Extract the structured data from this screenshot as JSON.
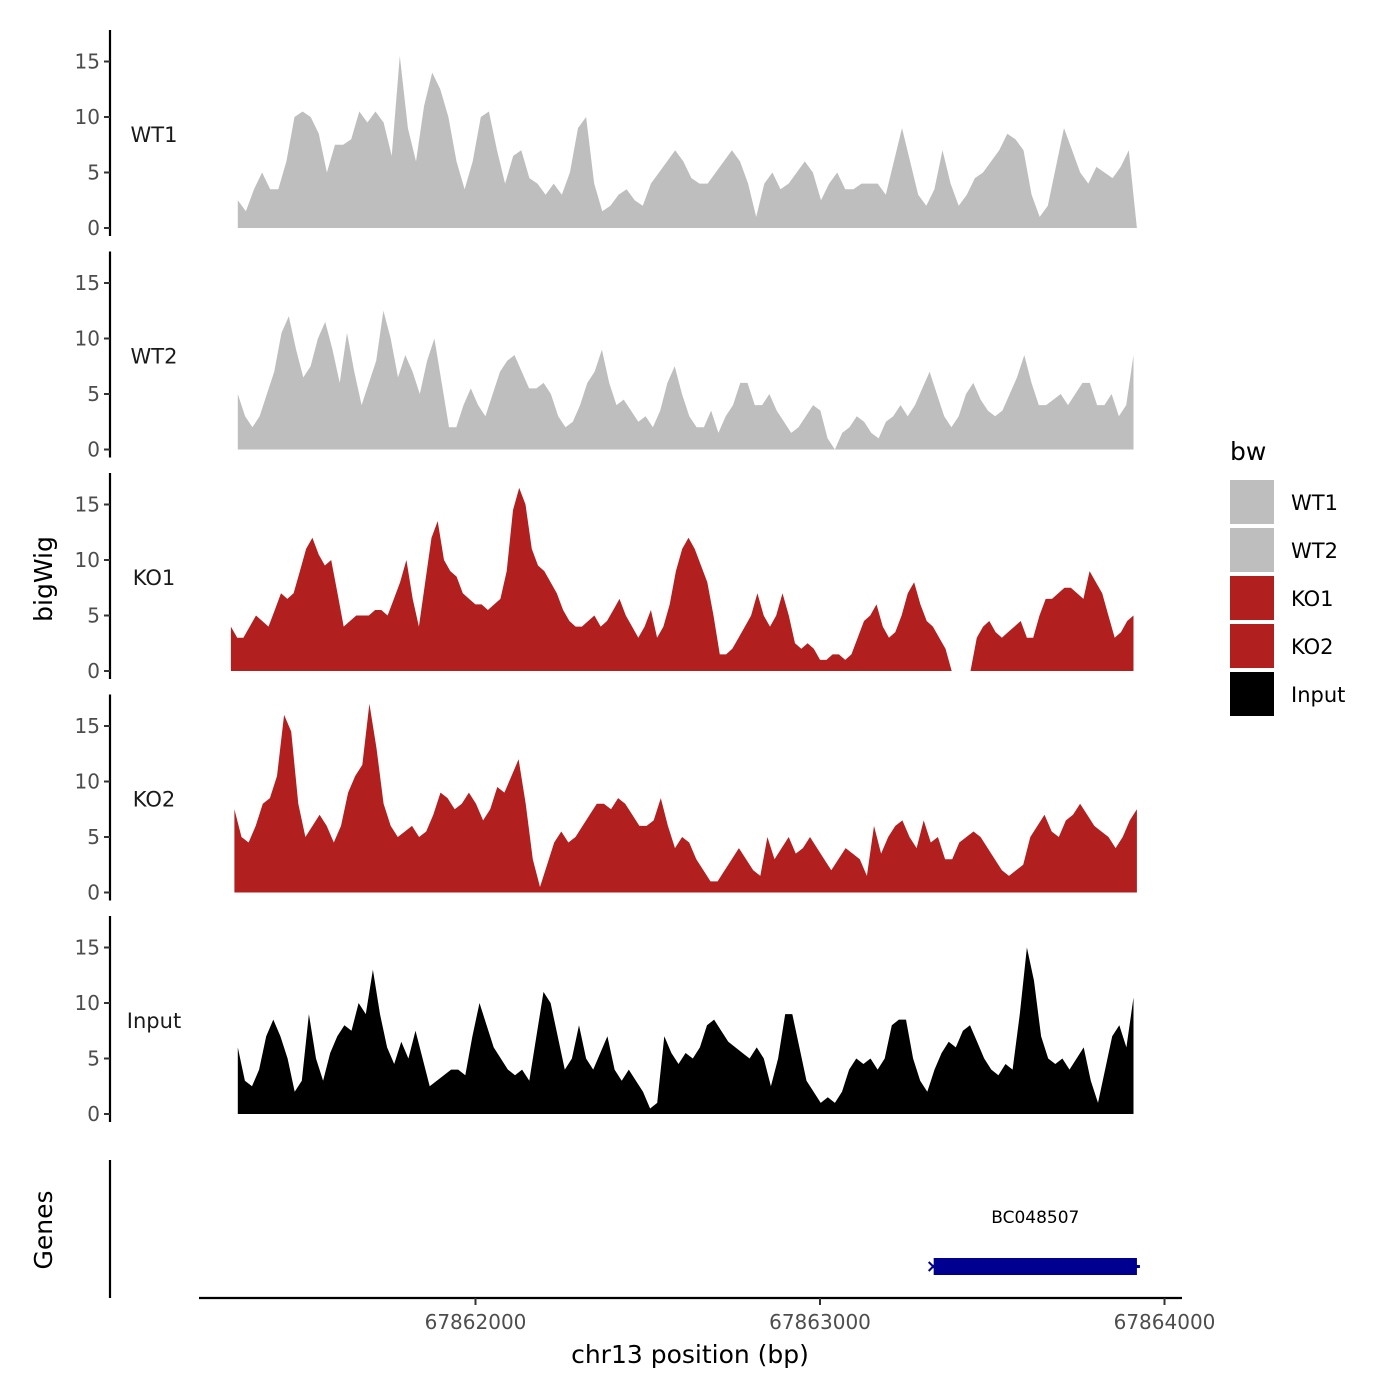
{
  "chart_data": {
    "type": "area",
    "xlabel": "chr13 position (bp)",
    "ylabel": "bigWig",
    "genes_label": "Genes",
    "ylim": [
      0,
      17
    ],
    "xlim": [
      67861200,
      67864050
    ],
    "x_ticks": [
      67862000,
      67863000,
      67864000
    ],
    "x_tick_labels": [
      "67862000",
      "67863000",
      "67864000"
    ],
    "y_ticks": [
      0,
      5,
      10,
      15
    ],
    "y_tick_labels": [
      "0",
      "5",
      "10",
      "15"
    ],
    "legend": {
      "title": "bw",
      "position": "right",
      "items": [
        {
          "label": "WT1",
          "color": "#bebebe"
        },
        {
          "label": "WT2",
          "color": "#bebebe"
        },
        {
          "label": "KO1",
          "color": "#b21f1f"
        },
        {
          "label": "KO2",
          "color": "#b21f1f"
        },
        {
          "label": "Input",
          "color": "#000000"
        }
      ]
    },
    "tracks": [
      {
        "name": "WT1",
        "color": "#bebebe",
        "x_start": 67861310,
        "x_end": 67863920,
        "values": [
          2.5,
          1.5,
          3.5,
          5,
          3.5,
          3.5,
          6,
          10,
          10.5,
          10,
          8.5,
          5,
          7.5,
          7.5,
          8,
          10.5,
          9.5,
          10.5,
          9.5,
          6.5,
          15.5,
          9,
          6,
          11,
          14,
          12.5,
          10,
          6,
          3.5,
          6,
          10,
          10.5,
          7,
          4,
          6.5,
          7,
          4.5,
          4,
          3,
          4,
          3,
          5,
          9,
          10,
          4,
          1.5,
          2,
          3,
          3.5,
          2.5,
          2,
          4,
          5,
          6,
          7,
          6,
          4.5,
          4,
          4,
          5,
          6,
          7,
          6,
          4,
          1,
          4,
          5,
          3.5,
          4,
          5,
          6,
          5,
          2.5,
          4,
          5,
          3.5,
          3.5,
          4,
          4,
          4,
          3,
          6,
          9,
          6,
          3,
          2,
          3.5,
          7,
          4,
          2,
          3,
          4.5,
          5,
          6,
          7,
          8.5,
          8,
          7,
          3,
          1,
          2,
          5.5,
          9,
          7,
          5,
          4,
          5.5,
          5,
          4.5,
          5.5,
          7,
          0
        ]
      },
      {
        "name": "WT2",
        "color": "#bebebe",
        "x_start": 67861310,
        "x_end": 67863910,
        "values": [
          5,
          3,
          2,
          3,
          5,
          7,
          10.5,
          12,
          9,
          6.5,
          7.5,
          10,
          11.5,
          9,
          6,
          10.5,
          7,
          4,
          6,
          8,
          12.5,
          10,
          6.5,
          8.5,
          7,
          5,
          8,
          10,
          6,
          2,
          2,
          4,
          5.5,
          4,
          3,
          5,
          7,
          8,
          8.5,
          7,
          5.5,
          5.5,
          6,
          5,
          3,
          2,
          2.5,
          4,
          6,
          7,
          9,
          6,
          4,
          4.5,
          3.5,
          2.5,
          3,
          2,
          3.5,
          6,
          7.5,
          5,
          3,
          2,
          2,
          3.5,
          1.5,
          3,
          4,
          6,
          6,
          4,
          4,
          5,
          3.5,
          2.5,
          1.5,
          2,
          3,
          4,
          3.5,
          1,
          0,
          1.5,
          2,
          3,
          2.5,
          1.5,
          1,
          2.5,
          3,
          4,
          3,
          4,
          5.5,
          7,
          5,
          3,
          2,
          3,
          5,
          6,
          4.5,
          3.5,
          3,
          3.5,
          5,
          6.5,
          8.5,
          6,
          4,
          4,
          4.5,
          5,
          4,
          5,
          6,
          6,
          4,
          4,
          5,
          3,
          4,
          8.5
        ]
      },
      {
        "name": "KO1",
        "color": "#b21f1f",
        "x_start": 67861290,
        "x_end": 67863910,
        "values": [
          4,
          3,
          3,
          4,
          5,
          4.5,
          4,
          5.5,
          7,
          6.5,
          7,
          9,
          11,
          12,
          10.5,
          9.5,
          10,
          7,
          4,
          4.5,
          5,
          5,
          5,
          5.5,
          5.5,
          5,
          6.5,
          8,
          10,
          6.5,
          4,
          8,
          12,
          13.5,
          10,
          9,
          8.5,
          7,
          6.5,
          6,
          6,
          5.5,
          6,
          6.5,
          9,
          14.5,
          16.5,
          15,
          11,
          9.5,
          9,
          8,
          7,
          5.5,
          4.5,
          4,
          4,
          4.5,
          5,
          4,
          4.5,
          5.5,
          6.5,
          5,
          4,
          3,
          4,
          5.5,
          3,
          4,
          6,
          9,
          11,
          12,
          11,
          9.5,
          8,
          5,
          1.5,
          1.5,
          2,
          3,
          4,
          5,
          7,
          5,
          4,
          5,
          7,
          5,
          2.5,
          2,
          2.5,
          2,
          1,
          1,
          1.5,
          1.5,
          1,
          1.5,
          3,
          4.5,
          5,
          6,
          4,
          3,
          3.5,
          5,
          7,
          8,
          6,
          4.5,
          4,
          3,
          2,
          0,
          null,
          null,
          0,
          3,
          4,
          4.5,
          3.5,
          3,
          3.5,
          4,
          4.5,
          3,
          3,
          5,
          6.5,
          6.5,
          7,
          7.5,
          7.5,
          7,
          6.5,
          9,
          8,
          7,
          5,
          3,
          3.5,
          4.5,
          5
        ]
      },
      {
        "name": "KO2",
        "color": "#b21f1f",
        "x_start": 67861300,
        "x_end": 67863920,
        "values": [
          7.5,
          5,
          4.5,
          6,
          8,
          8.5,
          10.5,
          16,
          14.5,
          8,
          5,
          6,
          7,
          6,
          4.5,
          6,
          9,
          10.5,
          11.5,
          17,
          13,
          8,
          6,
          5,
          5.5,
          6,
          5,
          5.5,
          7,
          9,
          8.5,
          7.5,
          8,
          9,
          8,
          6.5,
          7.5,
          9.5,
          9,
          10.5,
          12,
          8,
          3,
          0.5,
          2.5,
          4.5,
          5.5,
          4.5,
          5,
          6,
          7,
          8,
          8,
          7.5,
          8.5,
          8,
          7,
          6,
          6,
          6.5,
          8.5,
          6,
          4,
          5,
          4.5,
          3,
          2,
          1,
          1,
          2,
          3,
          4,
          3,
          2,
          1.5,
          5,
          3,
          4,
          5,
          3.5,
          4,
          5,
          4,
          3,
          2,
          3,
          4,
          3.5,
          3,
          1.5,
          6,
          3.5,
          5,
          6,
          6.5,
          5,
          4,
          6.5,
          4.5,
          5,
          3,
          3,
          4.5,
          5,
          5.5,
          5,
          4,
          3,
          2,
          1.5,
          2,
          2.5,
          5,
          6,
          7,
          5.5,
          5,
          6.5,
          7,
          8,
          7,
          6,
          5.5,
          5,
          4,
          5,
          6.5,
          7.5
        ]
      },
      {
        "name": "Input",
        "color": "#000000",
        "x_start": 67861310,
        "x_end": 67863910,
        "values": [
          6,
          3,
          2.5,
          4,
          7,
          8.5,
          7,
          5,
          2,
          3,
          9,
          5,
          3,
          5.5,
          7,
          8,
          7.5,
          10,
          9,
          13,
          9,
          6,
          4.5,
          6.5,
          5,
          7.5,
          5,
          2.5,
          3,
          3.5,
          4,
          4,
          3.5,
          7,
          10,
          8,
          6,
          5,
          4,
          3.5,
          4,
          3,
          7,
          11,
          10,
          7,
          4,
          5,
          8,
          5,
          4,
          5.5,
          7,
          4,
          3,
          4,
          3,
          2,
          0.5,
          1,
          7,
          5.5,
          4.5,
          5.5,
          5,
          6,
          8,
          8.5,
          7.5,
          6.5,
          6,
          5.5,
          5,
          6,
          5,
          2.5,
          5,
          9,
          9,
          6,
          3,
          2,
          1,
          1.5,
          1,
          2,
          4,
          5,
          4.5,
          5,
          4,
          5,
          8,
          8.5,
          8.5,
          5,
          3,
          2,
          4,
          5.5,
          6.5,
          6,
          7.5,
          8,
          6.5,
          5,
          4,
          3.5,
          4.5,
          4,
          9,
          15,
          12,
          7,
          5,
          4.5,
          5,
          4,
          5,
          6,
          3,
          1,
          4,
          7,
          8,
          6,
          10.5
        ]
      }
    ],
    "genes": [
      {
        "name": "BC048507",
        "start": 67863330,
        "end": 67863920,
        "color": "#000090"
      }
    ]
  }
}
